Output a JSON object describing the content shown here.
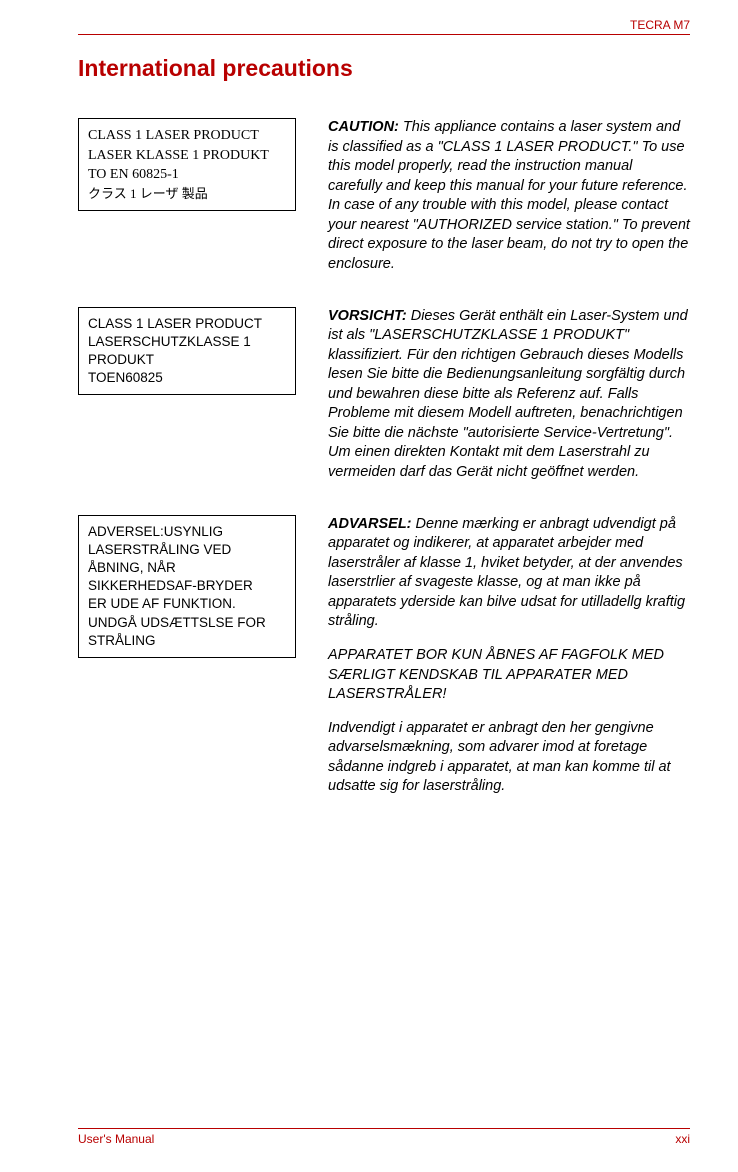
{
  "header": {
    "product": "TECRA M7"
  },
  "title": "International precautions",
  "sections": [
    {
      "label_html_lines": [
        "CLASS 1 LASER PRODUCT",
        "LASER KLASSE 1 PRODUKT",
        "TO EN 60825-1",
        "クラス 1 レーザ 製品"
      ],
      "label_style": "img-box",
      "desc_lead": "CAUTION:",
      "desc_text": " This appliance contains a laser system and is classified as a \"CLASS 1 LASER PRODUCT.\" To use this model properly, read the instruction manual carefully and keep this manual for your future reference. In case of any trouble with this model, please contact your nearest \"AUTHORIZED service station.\" To prevent direct exposure to the laser beam, do not try to open the enclosure."
    },
    {
      "label_html_lines": [
        "CLASS 1 LASER PRODUCT",
        "LASERSCHUTZKLASSE 1 PRODUKT",
        "TOEN60825"
      ],
      "label_style": "",
      "desc_lead": "VORSICHT:",
      "desc_text": " Dieses Gerät enthält ein Laser-System und ist als \"LASERSCHUTZKLASSE 1 PRODUKT\" klassifiziert. Für den richtigen Gebrauch dieses Modells lesen Sie bitte die Bedienungsanleitung sorgfältig durch und bewahren diese bitte als Referenz auf. Falls Probleme mit diesem Modell auftreten, benachrichtigen Sie bitte die nächste \"autorisierte Service-Vertretung\". Um einen direkten Kontakt mit dem Laserstrahl zu vermeiden darf das Gerät nicht geöffnet werden."
    },
    {
      "label_html_lines": [
        "ADVERSEL:USYNLIG LASERSTRÅLING VED ÅBNING, NÅR SIKKERHEDSAF-BRYDER",
        "ER UDE AF FUNKTION. UNDGÅ UDSÆTTSLSE FOR STRÅLING"
      ],
      "label_style": "",
      "desc_lead": "ADVARSEL:",
      "desc_text": " Denne mærking er anbragt udvendigt på apparatet og indikerer, at apparatet arbejder med laserstråler af klasse 1, hviket betyder, at der anvendes laserstrlier af svageste klasse, og at man ikke på apparatets yderside kan bilve udsat for utilladellg kraftig stråling.",
      "extra_paragraphs": [
        "APPARATET BOR KUN ÅBNES AF FAGFOLK MED SÆRLIGT KENDSKAB TIL APPARATER MED LASERSTRÅLER!",
        "Indvendigt i apparatet er anbragt den her gengivne advarselsmækning, som advarer imod at foretage sådanne indgreb i apparatet, at man kan komme til at udsatte sig for laserstråling."
      ]
    }
  ],
  "footer": {
    "left": "User's Manual",
    "right": "xxi"
  },
  "colors": {
    "accent": "#b80000",
    "text": "#000000",
    "bg": "#ffffff"
  }
}
